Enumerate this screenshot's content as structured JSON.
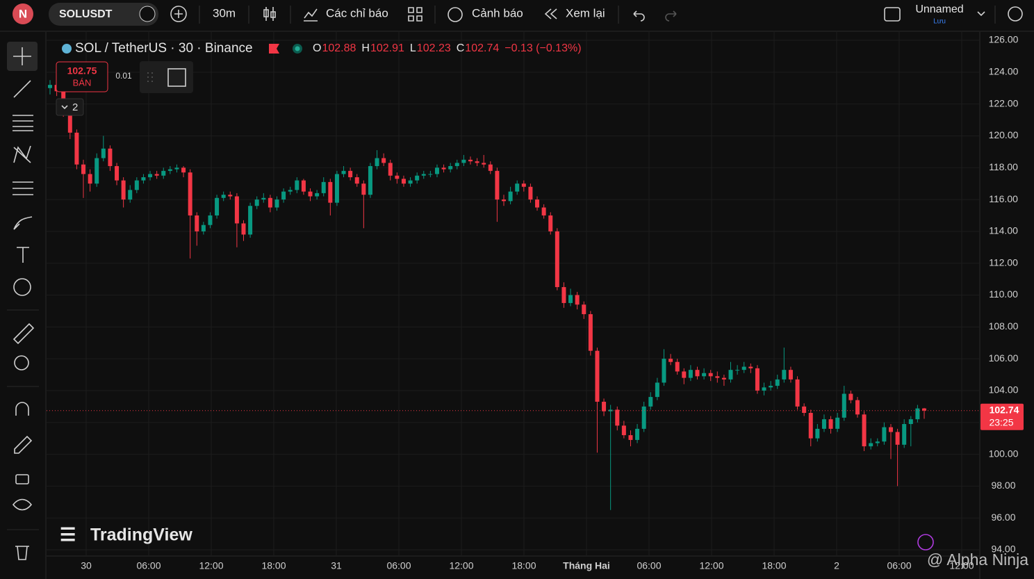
{
  "toolbar": {
    "avatar": "N",
    "symbol": "SOLUSDT",
    "interval": "30m",
    "indicators": "Các chỉ báo",
    "alert": "Cảnh báo",
    "replay": "Xem lại",
    "layout_name": "Unnamed",
    "save": "Lưu"
  },
  "trade": {
    "sell_price": 102.75,
    "sell_label": "BÁN",
    "spread": 0.01,
    "orders": 2
  },
  "chart_data": {
    "type": "candlestick",
    "title": "SOL / TetherUS · 30 · Binance",
    "ohlc_labels": [
      "O",
      "H",
      "L",
      "C"
    ],
    "change": "−0.13 (−0.13%)",
    "time_labels": [
      "30",
      "06:00",
      "12:00",
      "18:00",
      "31",
      "06:00",
      "12:00",
      "18:00",
      "Tháng Hai",
      "06:00",
      "12:00",
      "18:00",
      "2",
      "06:00",
      "12:00"
    ],
    "up_color": "#089981",
    "down_color": "#f23645",
    "grid": true,
    "countdown": "23:25",
    "logo": "TradingView",
    "ylim": [
      94,
      126
    ],
    "yticks": [
      {
        "value": 126,
        "label": "126.00"
      },
      {
        "value": 124,
        "label": "124.00"
      },
      {
        "value": 122,
        "label": "122.00"
      },
      {
        "value": 120,
        "label": "120.00"
      },
      {
        "value": 118,
        "label": "118.00"
      },
      {
        "value": 116,
        "label": "116.00"
      },
      {
        "value": 114,
        "label": "114.00"
      },
      {
        "value": 112,
        "label": "112.00"
      },
      {
        "value": 110,
        "label": "110.00"
      },
      {
        "value": 108,
        "label": "108.00"
      },
      {
        "value": 106,
        "label": "106.00"
      },
      {
        "value": 104,
        "label": "104.00"
      },
      {
        "value": 102,
        "label": "102.00"
      },
      {
        "value": 100,
        "label": "100.00"
      },
      {
        "value": 98,
        "label": "98.00"
      },
      {
        "value": 96,
        "label": "96.00"
      },
      {
        "value": 94,
        "label": "94.00"
      }
    ],
    "candles": [
      [
        123.0,
        123.5,
        122.6,
        123.2
      ],
      [
        123.2,
        123.4,
        122.5,
        122.8
      ],
      [
        122.8,
        123.0,
        121.2,
        121.5
      ],
      [
        121.5,
        121.7,
        119.8,
        120.2
      ],
      [
        120.2,
        120.4,
        117.9,
        118.2
      ],
      [
        118.2,
        118.5,
        116.1,
        117.6
      ],
      [
        117.6,
        117.9,
        116.5,
        117.0
      ],
      [
        117.0,
        118.9,
        116.8,
        118.6
      ],
      [
        118.6,
        120.0,
        118.4,
        119.2
      ],
      [
        119.2,
        119.4,
        117.8,
        118.1
      ],
      [
        118.1,
        118.3,
        116.9,
        117.2
      ],
      [
        117.2,
        117.4,
        115.5,
        116.0
      ],
      [
        116.0,
        116.9,
        115.8,
        116.6
      ],
      [
        116.6,
        117.4,
        116.4,
        117.2
      ],
      [
        117.2,
        117.6,
        117.0,
        117.4
      ],
      [
        117.4,
        117.8,
        117.2,
        117.6
      ],
      [
        117.6,
        117.8,
        117.3,
        117.5
      ],
      [
        117.5,
        118.0,
        117.3,
        117.8
      ],
      [
        117.8,
        118.1,
        117.6,
        117.9
      ],
      [
        117.9,
        118.2,
        117.7,
        118.0
      ],
      [
        118.0,
        118.1,
        117.4,
        117.7
      ],
      [
        117.7,
        117.9,
        112.3,
        115.0
      ],
      [
        115.0,
        115.2,
        113.1,
        114.0
      ],
      [
        114.0,
        114.6,
        113.8,
        114.4
      ],
      [
        114.4,
        115.2,
        114.2,
        115.0
      ],
      [
        115.0,
        116.3,
        114.8,
        116.1
      ],
      [
        116.1,
        116.5,
        115.9,
        116.3
      ],
      [
        116.3,
        116.5,
        116.0,
        116.2
      ],
      [
        116.2,
        116.4,
        113.0,
        114.5
      ],
      [
        114.5,
        114.7,
        113.4,
        113.8
      ],
      [
        113.8,
        115.8,
        113.6,
        115.6
      ],
      [
        115.6,
        116.2,
        115.4,
        116.0
      ],
      [
        116.0,
        116.4,
        115.8,
        116.1
      ],
      [
        116.1,
        116.3,
        115.2,
        115.5
      ],
      [
        115.5,
        116.2,
        115.3,
        116.0
      ],
      [
        116.0,
        116.7,
        115.8,
        116.5
      ],
      [
        116.5,
        116.8,
        116.3,
        116.6
      ],
      [
        116.6,
        117.4,
        116.4,
        117.2
      ],
      [
        117.2,
        117.3,
        116.3,
        116.5
      ],
      [
        116.5,
        116.7,
        115.9,
        116.2
      ],
      [
        116.2,
        116.6,
        116.0,
        116.4
      ],
      [
        116.4,
        117.4,
        116.2,
        117.1
      ],
      [
        117.1,
        117.3,
        115.0,
        115.8
      ],
      [
        115.8,
        117.8,
        115.6,
        117.6
      ],
      [
        117.6,
        118.1,
        117.4,
        117.8
      ],
      [
        117.8,
        118.0,
        117.2,
        117.4
      ],
      [
        117.4,
        117.6,
        116.8,
        117.0
      ],
      [
        117.0,
        117.2,
        114.2,
        116.3
      ],
      [
        116.3,
        118.3,
        116.1,
        118.1
      ],
      [
        118.1,
        119.1,
        117.9,
        118.6
      ],
      [
        118.6,
        118.9,
        118.1,
        118.3
      ],
      [
        118.3,
        118.5,
        117.2,
        117.5
      ],
      [
        117.5,
        117.7,
        117.0,
        117.3
      ],
      [
        117.3,
        117.5,
        116.8,
        117.0
      ],
      [
        117.0,
        117.4,
        116.8,
        117.2
      ],
      [
        117.2,
        117.7,
        117.0,
        117.5
      ],
      [
        117.5,
        117.8,
        117.3,
        117.6
      ],
      [
        117.6,
        117.8,
        117.4,
        117.6
      ],
      [
        117.6,
        118.2,
        117.4,
        118.0
      ],
      [
        118.0,
        118.2,
        117.7,
        117.9
      ],
      [
        117.9,
        118.3,
        117.7,
        118.1
      ],
      [
        118.1,
        118.5,
        117.9,
        118.3
      ],
      [
        118.3,
        118.8,
        118.1,
        118.5
      ],
      [
        118.5,
        118.7,
        118.2,
        118.4
      ],
      [
        118.4,
        118.6,
        118.1,
        118.3
      ],
      [
        118.3,
        118.8,
        118.0,
        118.2
      ],
      [
        118.2,
        118.4,
        117.6,
        117.8
      ],
      [
        117.8,
        118.0,
        114.6,
        116.0
      ],
      [
        116.0,
        116.3,
        115.6,
        115.9
      ],
      [
        115.9,
        116.8,
        115.7,
        116.5
      ],
      [
        116.5,
        117.2,
        116.3,
        117.0
      ],
      [
        117.0,
        117.2,
        116.5,
        116.8
      ],
      [
        116.8,
        117.0,
        115.8,
        116.0
      ],
      [
        116.0,
        116.2,
        115.3,
        115.5
      ],
      [
        115.5,
        115.7,
        114.8,
        115.0
      ],
      [
        115.0,
        115.2,
        113.8,
        114.0
      ],
      [
        114.0,
        114.2,
        110.3,
        110.5
      ],
      [
        110.5,
        110.8,
        109.2,
        109.5
      ],
      [
        109.5,
        110.4,
        109.3,
        110.0
      ],
      [
        110.0,
        110.2,
        109.1,
        109.4
      ],
      [
        109.4,
        109.6,
        108.5,
        108.8
      ],
      [
        108.8,
        109.0,
        106.2,
        106.5
      ],
      [
        106.5,
        106.7,
        100.1,
        103.3
      ],
      [
        103.3,
        103.5,
        102.4,
        102.7
      ],
      [
        102.7,
        103.1,
        96.5,
        102.8
      ],
      [
        102.8,
        103.0,
        101.5,
        101.8
      ],
      [
        101.8,
        102.1,
        101.0,
        101.2
      ],
      [
        101.2,
        101.5,
        100.5,
        100.9
      ],
      [
        100.9,
        101.9,
        100.7,
        101.6
      ],
      [
        101.6,
        103.3,
        101.4,
        103.0
      ],
      [
        103.0,
        103.9,
        102.8,
        103.6
      ],
      [
        103.6,
        104.8,
        103.4,
        104.5
      ],
      [
        104.5,
        106.6,
        104.3,
        106.0
      ],
      [
        106.0,
        106.3,
        105.6,
        105.8
      ],
      [
        105.8,
        106.0,
        105.0,
        105.2
      ],
      [
        105.2,
        105.4,
        104.4,
        104.8
      ],
      [
        104.8,
        105.6,
        104.6,
        105.3
      ],
      [
        105.3,
        105.5,
        104.7,
        104.9
      ],
      [
        104.9,
        105.4,
        104.7,
        105.1
      ],
      [
        105.1,
        105.3,
        104.6,
        104.9
      ],
      [
        104.9,
        105.2,
        104.5,
        104.8
      ],
      [
        104.8,
        105.0,
        104.3,
        104.7
      ],
      [
        104.7,
        105.8,
        104.5,
        105.3
      ],
      [
        105.3,
        105.6,
        105.0,
        105.3
      ],
      [
        105.3,
        105.8,
        105.1,
        105.5
      ],
      [
        105.5,
        105.7,
        105.1,
        105.4
      ],
      [
        105.4,
        105.6,
        103.8,
        104.0
      ],
      [
        104.0,
        104.5,
        103.7,
        104.2
      ],
      [
        104.2,
        104.6,
        104.0,
        104.3
      ],
      [
        104.3,
        105.0,
        104.1,
        104.7
      ],
      [
        104.7,
        106.7,
        104.5,
        105.3
      ],
      [
        105.3,
        105.5,
        104.5,
        104.7
      ],
      [
        104.7,
        104.9,
        102.8,
        103.0
      ],
      [
        103.0,
        103.2,
        102.4,
        102.6
      ],
      [
        102.6,
        102.8,
        100.5,
        101.0
      ],
      [
        101.0,
        101.9,
        100.8,
        101.6
      ],
      [
        101.6,
        102.5,
        101.4,
        102.2
      ],
      [
        102.2,
        102.4,
        101.3,
        101.6
      ],
      [
        101.6,
        102.6,
        101.4,
        102.3
      ],
      [
        102.3,
        104.3,
        102.1,
        103.8
      ],
      [
        103.8,
        104.0,
        103.2,
        103.4
      ],
      [
        103.4,
        103.6,
        102.3,
        102.5
      ],
      [
        102.5,
        102.7,
        100.2,
        100.5
      ],
      [
        100.5,
        101.0,
        100.3,
        100.7
      ],
      [
        100.7,
        101.0,
        100.5,
        100.8
      ],
      [
        100.8,
        102.0,
        100.6,
        101.7
      ],
      [
        101.7,
        101.9,
        99.7,
        101.4
      ],
      [
        101.4,
        101.6,
        98.0,
        100.6
      ],
      [
        100.6,
        102.2,
        100.4,
        101.9
      ],
      [
        101.9,
        102.4,
        100.5,
        102.2
      ],
      [
        102.2,
        103.1,
        102.0,
        102.88
      ],
      [
        102.88,
        102.91,
        102.23,
        102.74
      ]
    ]
  },
  "watermark": "@ Alpha Ninja"
}
